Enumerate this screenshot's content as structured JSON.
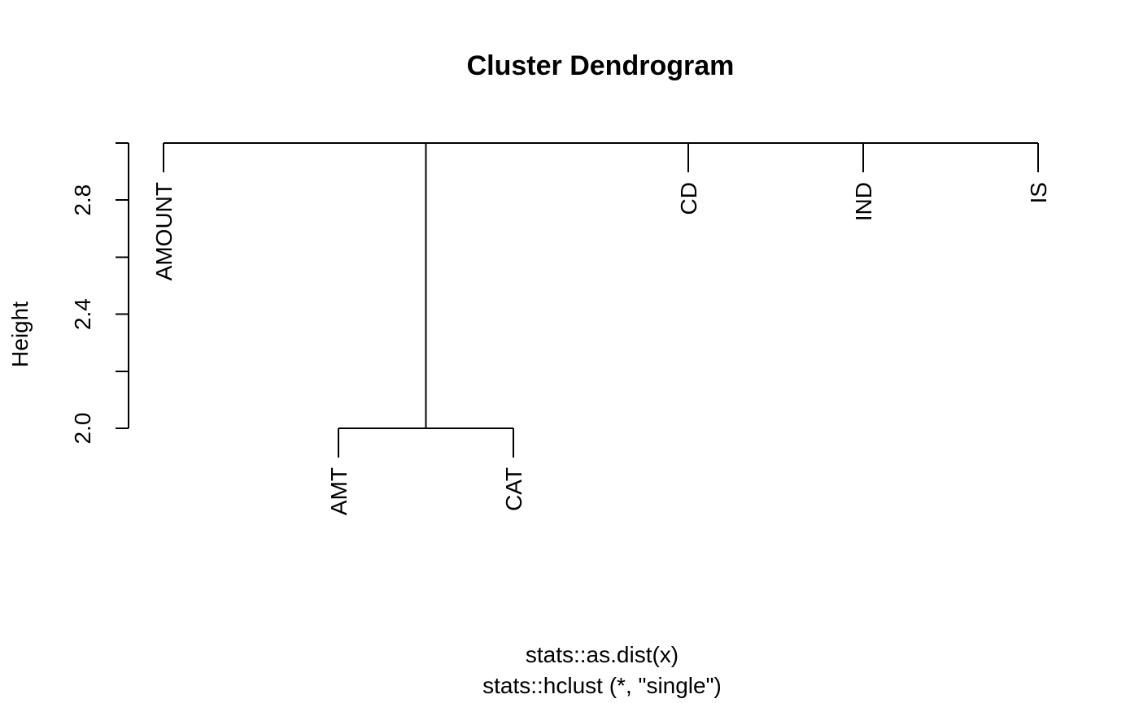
{
  "chart_data": {
    "type": "dendrogram",
    "title": "Cluster Dendrogram",
    "ylabel": "Height",
    "xlabel": "stats::as.dist(x)",
    "sub": "stats::hclust (*, \"single\")",
    "ylim": [
      2.0,
      3.0
    ],
    "yticks": [
      2.0,
      2.2,
      2.4,
      2.6,
      2.8,
      3.0
    ],
    "ytick_labels": [
      "2.0",
      "",
      "2.4",
      "",
      "2.8",
      ""
    ],
    "leaves": [
      "AMOUNT",
      "AMT",
      "CAT",
      "CD",
      "IND",
      "IS"
    ],
    "merges": [
      {
        "left": "AMT",
        "right": "CAT",
        "height": 2.0
      },
      {
        "left": "AMOUNT",
        "right": "AMT+CAT",
        "height": 3.0
      },
      {
        "left": "AMOUNT+AMT+CAT",
        "right": "CD",
        "height": 3.0
      },
      {
        "left": "AMOUNT+AMT+CAT+CD",
        "right": "IND",
        "height": 3.0
      },
      {
        "left": "AMOUNT+AMT+CAT+CD+IND",
        "right": "IS",
        "height": 3.0
      }
    ]
  }
}
